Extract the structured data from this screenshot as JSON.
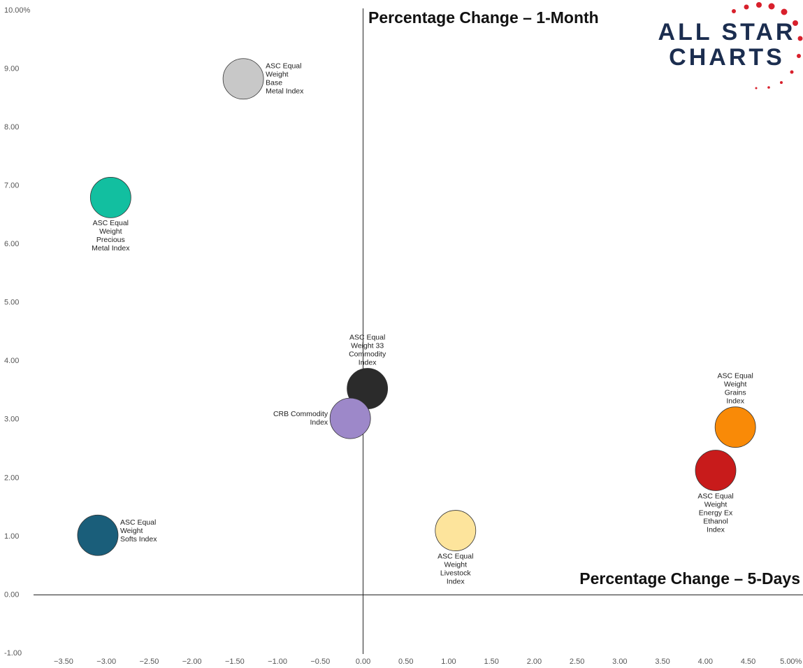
{
  "chart_data": {
    "type": "scatter",
    "annotations": [
      "Percentage Change – 1-Month",
      "Percentage Change – 5-Days"
    ],
    "logo": [
      "ALL STAR",
      "CHARTS"
    ],
    "xlim": [
      -3.9,
      5.1
    ],
    "ylim": [
      -1,
      10
    ],
    "xticks": [
      {
        "value": -3.5,
        "label": "−3.50"
      },
      {
        "value": -3,
        "label": "−3.00"
      },
      {
        "value": -2.5,
        "label": "−2.50"
      },
      {
        "value": -2,
        "label": "−2.00"
      },
      {
        "value": -1.5,
        "label": "−1.50"
      },
      {
        "value": -1,
        "label": "−1.00"
      },
      {
        "value": -0.5,
        "label": "−0.50"
      },
      {
        "value": 0,
        "label": "0.00"
      },
      {
        "value": 0.5,
        "label": "0.50"
      },
      {
        "value": 1,
        "label": "1.00"
      },
      {
        "value": 1.5,
        "label": "1.50"
      },
      {
        "value": 2,
        "label": "2.00"
      },
      {
        "value": 2.5,
        "label": "2.50"
      },
      {
        "value": 3,
        "label": "3.00"
      },
      {
        "value": 3.5,
        "label": "3.50"
      },
      {
        "value": 4,
        "label": "4.00"
      },
      {
        "value": 4.5,
        "label": "4.50"
      },
      {
        "value": 5,
        "label": "5.00%"
      }
    ],
    "yticks": [
      {
        "value": -1,
        "label": "-1.00"
      },
      {
        "value": 0,
        "label": "0.00"
      },
      {
        "value": 1,
        "label": "1.00"
      },
      {
        "value": 2,
        "label": "2.00"
      },
      {
        "value": 3,
        "label": "3.00"
      },
      {
        "value": 4,
        "label": "4.00"
      },
      {
        "value": 5,
        "label": "5.00"
      },
      {
        "value": 6,
        "label": "6.00"
      },
      {
        "value": 7,
        "label": "7.00"
      },
      {
        "value": 8,
        "label": "8.00"
      },
      {
        "value": 9,
        "label": "9.00"
      },
      {
        "value": 10,
        "label": "10.00%"
      }
    ],
    "points": [
      {
        "label": [
          "ASC Equal",
          "Weight",
          "Base",
          "Metal Index"
        ],
        "x": -1.4,
        "y": 8.83,
        "color": "#c8c8c8"
      },
      {
        "label": [
          "ASC Equal",
          "Weight",
          "Precious",
          "Metal Index"
        ],
        "x": -2.95,
        "y": 6.8,
        "color": "#12bfa0"
      },
      {
        "label": [
          "ASC Equal",
          "Weight 33",
          "Commodity",
          "Index"
        ],
        "x": 0.05,
        "y": 3.53,
        "color": "#2b2b2b"
      },
      {
        "label": [
          "CRB Commodity",
          "Index"
        ],
        "x": -0.15,
        "y": 3.02,
        "color": "#9d88c9"
      },
      {
        "label": [
          "ASC Equal",
          "Weight",
          "Softs Index"
        ],
        "x": -3.1,
        "y": 1.02,
        "color": "#1a5e7a"
      },
      {
        "label": [
          "ASC Equal",
          "Weight",
          "Livestock",
          "Index"
        ],
        "x": 1.08,
        "y": 1.1,
        "color": "#fde49c"
      },
      {
        "label": [
          "ASC Equal",
          "Weight",
          "Grains",
          "Index"
        ],
        "x": 4.35,
        "y": 2.87,
        "color": "#f98a07"
      },
      {
        "label": [
          "ASC Equal",
          "Weight",
          "Energy Ex",
          "Ethanol",
          "Index"
        ],
        "x": 4.12,
        "y": 2.13,
        "color": "#c81b1b"
      }
    ]
  }
}
